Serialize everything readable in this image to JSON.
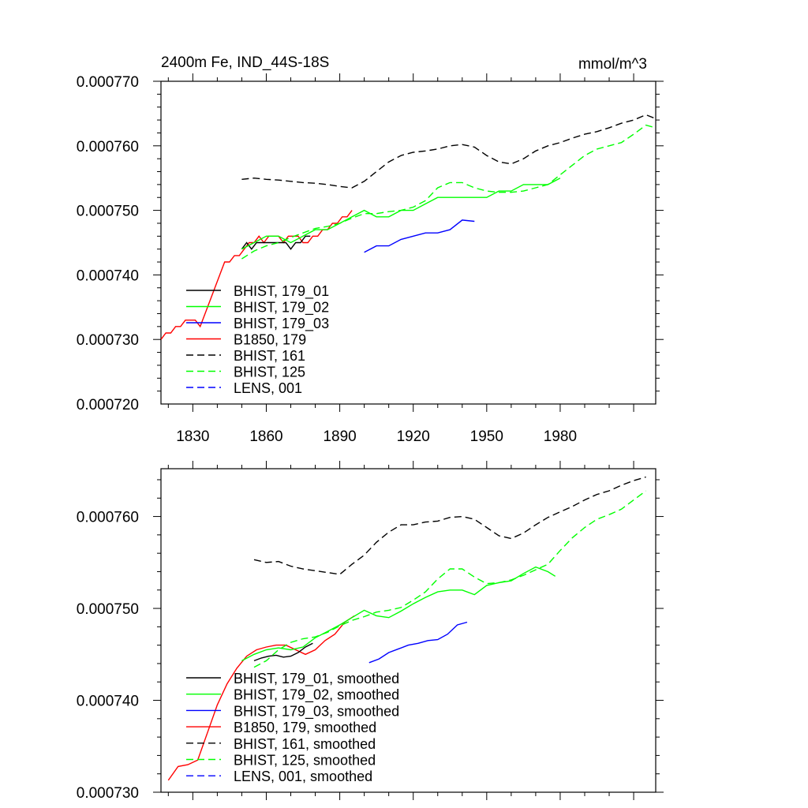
{
  "figure": {
    "title_left": "2400m Fe, IND_44S-18S",
    "title_right": "mmol/m^3"
  },
  "chart_data": [
    {
      "type": "line",
      "title": "2400m Fe, IND_44S-18S",
      "units": "mmol/m^3",
      "xlim": [
        1817,
        2019
      ],
      "ylim": [
        0.00072,
        0.00077
      ],
      "x_ticks": [
        1830,
        1860,
        1890,
        1920,
        1950,
        1980
      ],
      "x_tick_labels": [
        "1830",
        "1860",
        "1890",
        "1920",
        "1950",
        "1980"
      ],
      "y_ticks": [
        0.00072,
        0.00073,
        0.00074,
        0.00075,
        0.00076,
        0.00077
      ],
      "y_tick_labels": [
        "0.000720",
        "0.000730",
        "0.000740",
        "0.000750",
        "0.000760",
        "0.000770"
      ],
      "legend_position": "lower-left",
      "legend": [
        {
          "label": "BHIST, 179_01",
          "color": "#000000",
          "dash": "solid"
        },
        {
          "label": "BHIST, 179_02",
          "color": "#00ff00",
          "dash": "solid"
        },
        {
          "label": "BHIST, 179_03",
          "color": "#0000ff",
          "dash": "solid"
        },
        {
          "label": "B1850, 179",
          "color": "#ff0000",
          "dash": "solid"
        },
        {
          "label": "BHIST, 161",
          "color": "#000000",
          "dash": "dashed"
        },
        {
          "label": "BHIST, 125",
          "color": "#00ff00",
          "dash": "dashed"
        },
        {
          "label": "LENS, 001",
          "color": "#0000ff",
          "dash": "dashed"
        }
      ],
      "series": [
        {
          "label": "B1850, 179",
          "color": "#ff0000",
          "dash": "solid",
          "x": [
            1817,
            1819,
            1821,
            1823,
            1825,
            1827,
            1829,
            1831,
            1833,
            1835,
            1837,
            1839,
            1841,
            1843,
            1845,
            1847,
            1849,
            1851,
            1853,
            1855,
            1857,
            1859,
            1861,
            1863,
            1865,
            1867,
            1869,
            1871,
            1873,
            1875,
            1877,
            1879,
            1881,
            1883,
            1885,
            1887,
            1889,
            1891,
            1893,
            1895
          ],
          "y": [
            0.00073,
            0.000731,
            0.000731,
            0.000732,
            0.000732,
            0.000733,
            0.000733,
            0.000733,
            0.000732,
            0.000734,
            0.000736,
            0.000738,
            0.00074,
            0.000742,
            0.000742,
            0.000743,
            0.000743,
            0.000744,
            0.000745,
            0.000745,
            0.000746,
            0.000745,
            0.000746,
            0.000746,
            0.000746,
            0.000745,
            0.000746,
            0.000746,
            0.000746,
            0.000745,
            0.000745,
            0.000746,
            0.000746,
            0.000747,
            0.000747,
            0.000748,
            0.000748,
            0.000749,
            0.000749,
            0.00075
          ]
        },
        {
          "label": "BHIST, 179_01",
          "color": "#000000",
          "dash": "solid",
          "x": [
            1850,
            1852,
            1854,
            1856,
            1858,
            1860,
            1862,
            1864,
            1866,
            1868,
            1870,
            1872,
            1874,
            1876,
            1878
          ],
          "y": [
            0.000744,
            0.000745,
            0.000744,
            0.000745,
            0.000745,
            0.000745,
            0.000745,
            0.000745,
            0.000745,
            0.000745,
            0.000744,
            0.000745,
            0.000745,
            0.000746,
            0.000746
          ]
        },
        {
          "label": "BHIST, 179_02",
          "color": "#00ff00",
          "dash": "solid",
          "x": [
            1850,
            1855,
            1860,
            1865,
            1870,
            1875,
            1880,
            1885,
            1890,
            1895,
            1900,
            1905,
            1910,
            1915,
            1920,
            1925,
            1930,
            1935,
            1940,
            1945,
            1950,
            1955,
            1960,
            1965,
            1970,
            1975,
            1980
          ],
          "y": [
            0.000744,
            0.000745,
            0.000746,
            0.000746,
            0.000745,
            0.000746,
            0.000747,
            0.000747,
            0.000748,
            0.000749,
            0.00075,
            0.000749,
            0.000749,
            0.00075,
            0.00075,
            0.000751,
            0.000752,
            0.000752,
            0.000752,
            0.000752,
            0.000752,
            0.000753,
            0.000753,
            0.000754,
            0.000754,
            0.000754,
            0.000755
          ]
        },
        {
          "label": "BHIST, 179_03",
          "color": "#0000ff",
          "dash": "solid",
          "x": [
            1900,
            1905,
            1910,
            1915,
            1920,
            1925,
            1930,
            1935,
            1940,
            1945
          ],
          "y": [
            0.0007435,
            0.0007445,
            0.0007445,
            0.0007455,
            0.000746,
            0.0007465,
            0.0007465,
            0.000747,
            0.0007485,
            0.0007483
          ]
        },
        {
          "label": "BHIST, 161",
          "color": "#000000",
          "dash": "dashed",
          "x": [
            1850,
            1855,
            1860,
            1865,
            1870,
            1875,
            1880,
            1885,
            1890,
            1895,
            1900,
            1905,
            1910,
            1915,
            1920,
            1925,
            1930,
            1935,
            1940,
            1945,
            1950,
            1955,
            1960,
            1965,
            1970,
            1975,
            1980,
            1985,
            1990,
            1995,
            2000,
            2005,
            2010,
            2015,
            2019
          ],
          "y": [
            0.0007548,
            0.000755,
            0.0007548,
            0.0007547,
            0.0007545,
            0.0007543,
            0.0007542,
            0.000754,
            0.0007537,
            0.0007535,
            0.0007545,
            0.000756,
            0.0007575,
            0.0007585,
            0.000759,
            0.0007592,
            0.0007595,
            0.00076,
            0.0007602,
            0.0007598,
            0.0007585,
            0.0007575,
            0.0007572,
            0.000758,
            0.0007592,
            0.00076,
            0.0007605,
            0.0007612,
            0.0007618,
            0.0007622,
            0.0007628,
            0.0007635,
            0.000764,
            0.0007648,
            0.0007642
          ]
        },
        {
          "label": "BHIST, 125",
          "color": "#00ff00",
          "dash": "dashed",
          "x": [
            1850,
            1855,
            1860,
            1865,
            1870,
            1875,
            1880,
            1885,
            1890,
            1895,
            1900,
            1905,
            1910,
            1915,
            1920,
            1925,
            1930,
            1935,
            1940,
            1945,
            1950,
            1955,
            1960,
            1965,
            1970,
            1975,
            1980,
            1985,
            1990,
            1995,
            2000,
            2005,
            2010,
            2015,
            2019
          ],
          "y": [
            0.0007425,
            0.0007437,
            0.0007445,
            0.000745,
            0.0007458,
            0.0007465,
            0.0007472,
            0.0007475,
            0.000748,
            0.0007488,
            0.0007495,
            0.0007495,
            0.0007498,
            0.00075,
            0.0007505,
            0.0007515,
            0.0007535,
            0.0007543,
            0.0007543,
            0.0007535,
            0.000753,
            0.0007528,
            0.0007528,
            0.000753,
            0.0007535,
            0.000754,
            0.0007555,
            0.000757,
            0.0007585,
            0.0007595,
            0.00076,
            0.0007605,
            0.0007618,
            0.0007632,
            0.0007628
          ]
        }
      ]
    },
    {
      "type": "line",
      "xlim": [
        1817,
        2019
      ],
      "ylim": [
        0.00073,
        0.0007652
      ],
      "x_ticks": [
        1830,
        1860,
        1890,
        1920,
        1950,
        1980
      ],
      "y_ticks": [
        0.00073,
        0.00074,
        0.00075,
        0.00076
      ],
      "y_tick_labels": [
        "0.000730",
        "0.000740",
        "0.000750",
        "0.000760"
      ],
      "legend_position": "lower-left",
      "legend": [
        {
          "label": "BHIST, 179_01, smoothed",
          "color": "#000000",
          "dash": "solid"
        },
        {
          "label": "BHIST, 179_02, smoothed",
          "color": "#00ff00",
          "dash": "solid"
        },
        {
          "label": "BHIST, 179_03, smoothed",
          "color": "#0000ff",
          "dash": "solid"
        },
        {
          "label": "B1850, 179, smoothed",
          "color": "#ff0000",
          "dash": "solid"
        },
        {
          "label": "BHIST, 161, smoothed",
          "color": "#000000",
          "dash": "dashed"
        },
        {
          "label": "BHIST, 125, smoothed",
          "color": "#00ff00",
          "dash": "dashed"
        },
        {
          "label": "LENS, 001, smoothed",
          "color": "#0000ff",
          "dash": "dashed"
        }
      ],
      "series": [
        {
          "label": "B1850, 179, smoothed",
          "color": "#ff0000",
          "dash": "solid",
          "x": [
            1820,
            1824,
            1828,
            1832,
            1836,
            1840,
            1844,
            1848,
            1852,
            1856,
            1860,
            1864,
            1868,
            1872,
            1876,
            1880,
            1884,
            1888,
            1892,
            1896
          ],
          "y": [
            0.0007313,
            0.0007328,
            0.000733,
            0.0007335,
            0.0007365,
            0.0007395,
            0.0007418,
            0.0007435,
            0.0007448,
            0.0007455,
            0.0007458,
            0.000746,
            0.000746,
            0.0007455,
            0.000745,
            0.0007455,
            0.0007465,
            0.0007472,
            0.0007485,
            0.0007492
          ]
        },
        {
          "label": "BHIST, 179_01, smoothed",
          "color": "#000000",
          "dash": "solid",
          "x": [
            1855,
            1858,
            1861,
            1864,
            1867,
            1870,
            1873,
            1876,
            1879
          ],
          "y": [
            0.0007443,
            0.0007446,
            0.0007448,
            0.0007449,
            0.0007447,
            0.0007448,
            0.0007452,
            0.0007458,
            0.0007462
          ]
        },
        {
          "label": "BHIST, 179_02, smoothed",
          "color": "#00ff00",
          "dash": "solid",
          "x": [
            1850,
            1855,
            1860,
            1865,
            1870,
            1875,
            1880,
            1885,
            1890,
            1895,
            1900,
            1905,
            1910,
            1915,
            1920,
            1925,
            1930,
            1935,
            1940,
            1945,
            1950,
            1955,
            1960,
            1965,
            1970,
            1975,
            1978
          ],
          "y": [
            0.0007443,
            0.000745,
            0.0007455,
            0.0007457,
            0.0007455,
            0.0007458,
            0.0007468,
            0.0007475,
            0.0007482,
            0.000749,
            0.0007498,
            0.0007492,
            0.000749,
            0.0007497,
            0.0007505,
            0.0007512,
            0.0007518,
            0.000752,
            0.000752,
            0.0007515,
            0.0007525,
            0.0007528,
            0.000753,
            0.0007538,
            0.0007545,
            0.000754,
            0.0007535
          ]
        },
        {
          "label": "BHIST, 179_03, smoothed",
          "color": "#0000ff",
          "dash": "solid",
          "x": [
            1902,
            1906,
            1910,
            1914,
            1918,
            1922,
            1926,
            1930,
            1934,
            1938,
            1942
          ],
          "y": [
            0.0007441,
            0.0007445,
            0.0007452,
            0.0007456,
            0.000746,
            0.0007462,
            0.0007465,
            0.0007466,
            0.0007472,
            0.0007482,
            0.0007485
          ]
        },
        {
          "label": "BHIST, 161, smoothed",
          "color": "#000000",
          "dash": "dashed",
          "x": [
            1855,
            1860,
            1865,
            1870,
            1875,
            1880,
            1885,
            1890,
            1895,
            1900,
            1905,
            1910,
            1915,
            1920,
            1925,
            1930,
            1935,
            1940,
            1945,
            1950,
            1955,
            1960,
            1965,
            1970,
            1975,
            1980,
            1985,
            1990,
            1995,
            2000,
            2005,
            2010,
            2015
          ],
          "y": [
            0.0007553,
            0.000755,
            0.0007551,
            0.0007546,
            0.0007543,
            0.0007541,
            0.0007539,
            0.0007537,
            0.0007548,
            0.0007558,
            0.0007572,
            0.0007583,
            0.0007591,
            0.0007591,
            0.0007594,
            0.0007595,
            0.0007599,
            0.00076,
            0.0007597,
            0.0007588,
            0.0007579,
            0.0007576,
            0.0007582,
            0.0007591,
            0.0007599,
            0.0007605,
            0.0007611,
            0.0007618,
            0.0007624,
            0.0007628,
            0.0007634,
            0.0007639,
            0.0007643
          ]
        },
        {
          "label": "BHIST, 125, smoothed",
          "color": "#00ff00",
          "dash": "dashed",
          "x": [
            1855,
            1860,
            1865,
            1870,
            1875,
            1880,
            1885,
            1890,
            1895,
            1900,
            1905,
            1910,
            1915,
            1920,
            1925,
            1930,
            1935,
            1940,
            1945,
            1950,
            1955,
            1960,
            1965,
            1970,
            1975,
            1980,
            1985,
            1990,
            1995,
            2000,
            2005,
            2010,
            2015
          ],
          "y": [
            0.0007436,
            0.0007443,
            0.0007455,
            0.0007463,
            0.0007467,
            0.0007469,
            0.0007474,
            0.0007481,
            0.0007487,
            0.0007491,
            0.0007496,
            0.0007498,
            0.0007501,
            0.0007509,
            0.0007518,
            0.0007532,
            0.0007543,
            0.0007543,
            0.0007534,
            0.0007527,
            0.0007528,
            0.0007531,
            0.0007536,
            0.0007542,
            0.0007548,
            0.0007563,
            0.0007577,
            0.0007588,
            0.0007597,
            0.0007602,
            0.0007608,
            0.0007618,
            0.0007628
          ]
        }
      ]
    }
  ]
}
